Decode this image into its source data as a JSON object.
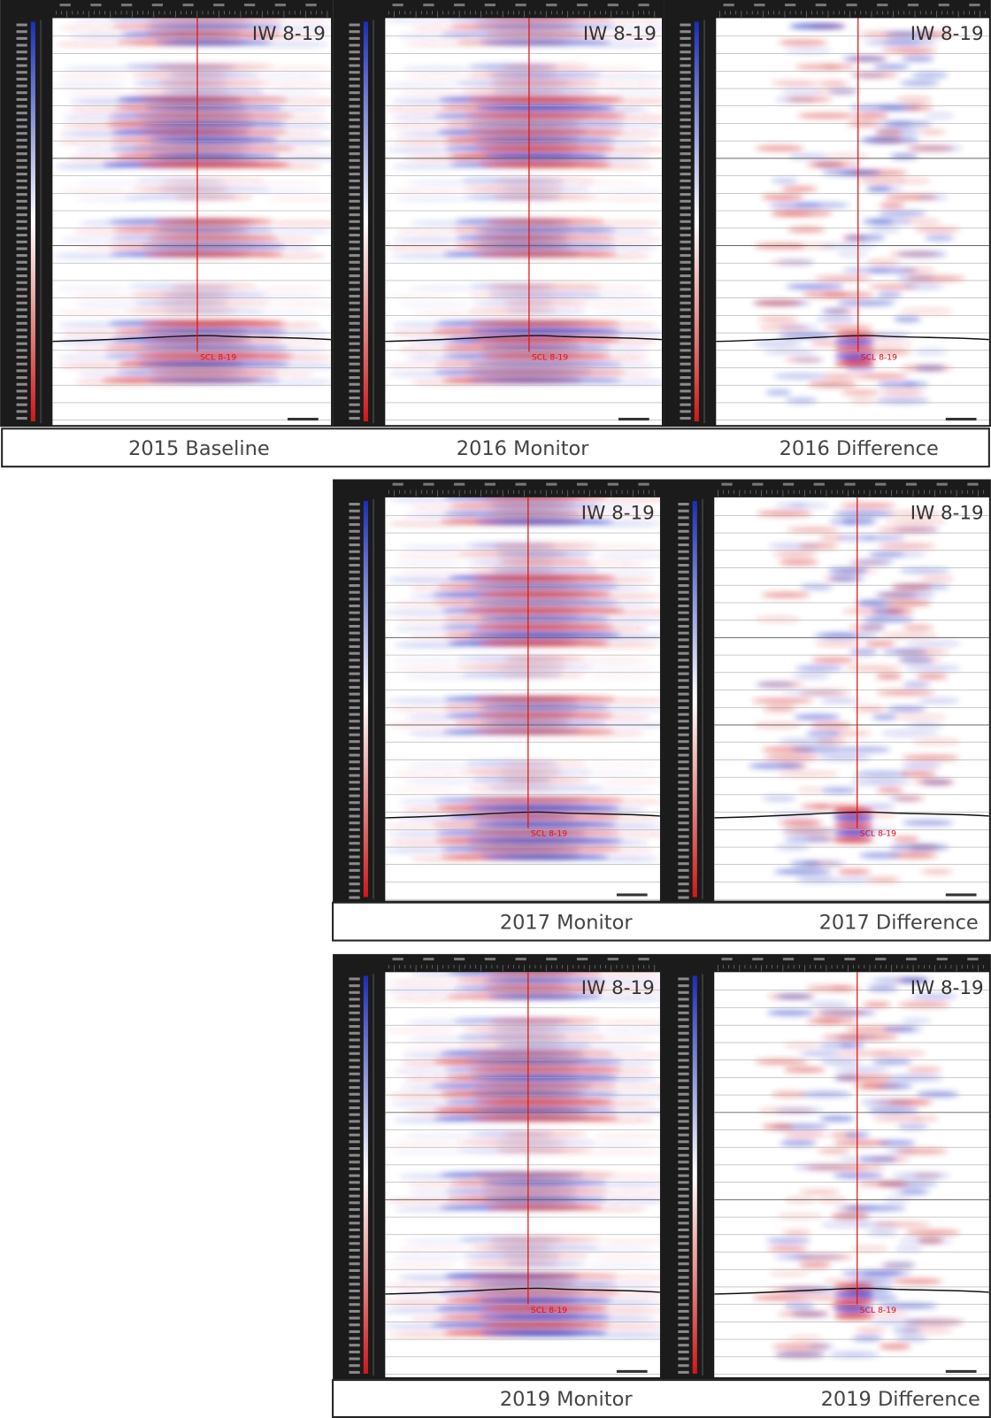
{
  "rows": [
    {
      "panels": [
        {
          "well_label": "IW 8-19",
          "trace_label": "SCL 8-19"
        },
        {
          "well_label": "IW 8-19",
          "trace_label": "SCL 8-19"
        },
        {
          "well_label": "IW 8-19",
          "trace_label": "SCL 8-19"
        }
      ],
      "captions": [
        "2015 Baseline",
        "2016 Monitor",
        "2016 Difference"
      ]
    },
    {
      "panels": [
        {
          "well_label": "IW 8-19",
          "trace_label": "SCL 8-19"
        },
        {
          "well_label": "IW 8-19",
          "trace_label": "SCL 8-19"
        }
      ],
      "captions": [
        "2017 Monitor",
        "2017 Difference"
      ]
    },
    {
      "panels": [
        {
          "well_label": "IW 8-19",
          "trace_label": "SCL 8-19"
        },
        {
          "well_label": "IW 8-19",
          "trace_label": "SCL 8-19"
        }
      ],
      "captions": [
        "2019 Monitor",
        "2019 Difference"
      ]
    }
  ]
}
